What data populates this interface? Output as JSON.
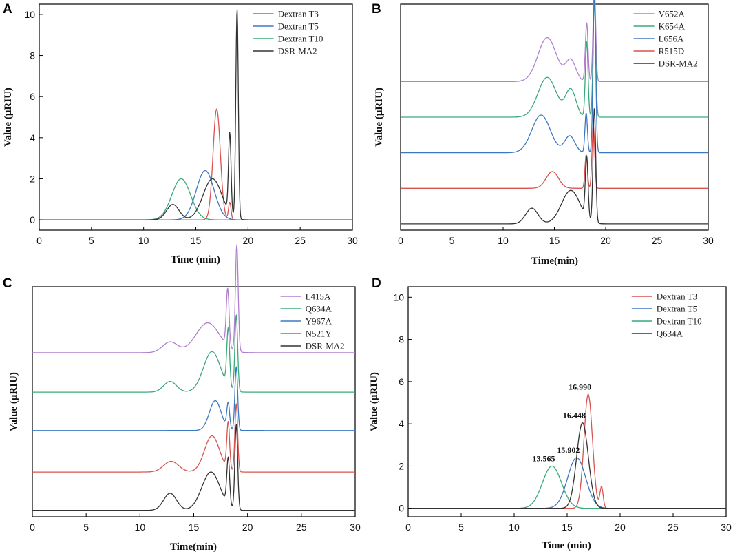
{
  "chart_data": [
    {
      "panel": "A",
      "type": "line",
      "xlabel": "Time (min)",
      "ylabel": "Value (μRIU)",
      "xlim": [
        0,
        30
      ],
      "ylim": [
        -0.5,
        10.5
      ],
      "xticks": [
        "0",
        "5",
        "10",
        "15",
        "20",
        "25",
        "30"
      ],
      "yticks": [
        "0",
        "2",
        "4",
        "6",
        "8",
        "10"
      ],
      "legend_position": "top-right",
      "series": [
        {
          "name": "Dextran  T3",
          "color": "#d9534f",
          "baseline": 0,
          "peaks": [
            {
              "t": 17.0,
              "h": 5.4,
              "w": 0.35
            },
            {
              "t": 18.25,
              "h": 0.85,
              "w": 0.12
            }
          ]
        },
        {
          "name": "Dextran  T5",
          "color": "#3b78c2",
          "baseline": 0,
          "peaks": [
            {
              "t": 15.9,
              "h": 2.4,
              "w": 0.85
            }
          ]
        },
        {
          "name": "Dextran  T10",
          "color": "#3aaa7a",
          "baseline": 0,
          "peaks": [
            {
              "t": 13.6,
              "h": 2.0,
              "w": 0.9
            }
          ]
        },
        {
          "name": "DSR-MA2",
          "color": "#333333",
          "baseline": 0,
          "peaks": [
            {
              "t": 12.8,
              "h": 0.75,
              "w": 0.6
            },
            {
              "t": 16.6,
              "h": 2.0,
              "w": 0.9
            },
            {
              "t": 18.25,
              "h": 3.9,
              "w": 0.12
            },
            {
              "t": 18.95,
              "h": 10.2,
              "w": 0.12
            }
          ]
        }
      ]
    },
    {
      "panel": "B",
      "type": "line",
      "xlabel": "Time(min)",
      "ylabel": "Value (μRIU)",
      "xlim": [
        0,
        30
      ],
      "ylim": [
        -0.3,
        10.5
      ],
      "xticks": [
        "0",
        "5",
        "10",
        "15",
        "20",
        "25",
        "30"
      ],
      "yticks": [],
      "legend_position": "top-right",
      "series": [
        {
          "name": "V652A",
          "color": "#b07fcf",
          "baseline": 6.8,
          "peaks": [
            {
              "t": 14.3,
              "h": 2.1,
              "w": 0.9
            },
            {
              "t": 16.6,
              "h": 1.0,
              "w": 0.5
            },
            {
              "t": 18.15,
              "h": 2.8,
              "w": 0.13
            },
            {
              "t": 18.9,
              "h": 4.5,
              "w": 0.13
            }
          ]
        },
        {
          "name": "K654A",
          "color": "#3aaa7a",
          "baseline": 5.1,
          "peaks": [
            {
              "t": 14.3,
              "h": 1.9,
              "w": 0.9
            },
            {
              "t": 16.6,
              "h": 1.3,
              "w": 0.5
            },
            {
              "t": 18.15,
              "h": 3.6,
              "w": 0.13
            },
            {
              "t": 18.9,
              "h": 5.5,
              "w": 0.13
            }
          ]
        },
        {
          "name": "L656A",
          "color": "#3b78c2",
          "baseline": 3.4,
          "peaks": [
            {
              "t": 13.7,
              "h": 1.8,
              "w": 0.9
            },
            {
              "t": 16.5,
              "h": 0.8,
              "w": 0.5
            },
            {
              "t": 18.1,
              "h": 1.9,
              "w": 0.12
            },
            {
              "t": 18.9,
              "h": 7.5,
              "w": 0.13
            }
          ]
        },
        {
          "name": "R515D",
          "color": "#d9534f",
          "baseline": 1.7,
          "peaks": [
            {
              "t": 14.8,
              "h": 0.8,
              "w": 0.6
            },
            {
              "t": 18.1,
              "h": 1.6,
              "w": 0.12
            },
            {
              "t": 18.8,
              "h": 3.0,
              "w": 0.13
            }
          ]
        },
        {
          "name": "DSR-MA2",
          "color": "#333333",
          "baseline": 0,
          "peaks": [
            {
              "t": 12.8,
              "h": 0.75,
              "w": 0.6
            },
            {
              "t": 16.6,
              "h": 1.6,
              "w": 0.9
            },
            {
              "t": 18.15,
              "h": 2.9,
              "w": 0.13
            },
            {
              "t": 18.9,
              "h": 5.5,
              "w": 0.13
            }
          ]
        }
      ]
    },
    {
      "panel": "C",
      "type": "line",
      "xlabel": "Time(min)",
      "ylabel": "Value (μRIU)",
      "xlim": [
        0,
        30
      ],
      "ylim": [
        -0.3,
        10.5
      ],
      "xticks": [
        "0",
        "5",
        "10",
        "15",
        "20",
        "25",
        "30"
      ],
      "yticks": [],
      "legend_position": "top-right",
      "series": [
        {
          "name": "L415A",
          "color": "#b07fcf",
          "baseline": 7.4,
          "peaks": [
            {
              "t": 12.8,
              "h": 0.5,
              "w": 0.7
            },
            {
              "t": 16.3,
              "h": 1.4,
              "w": 1.1
            },
            {
              "t": 18.15,
              "h": 2.7,
              "w": 0.13
            },
            {
              "t": 19.0,
              "h": 5.0,
              "w": 0.13
            }
          ]
        },
        {
          "name": "Q634A",
          "color": "#3aaa7a",
          "baseline": 5.55,
          "peaks": [
            {
              "t": 12.8,
              "h": 0.5,
              "w": 0.6
            },
            {
              "t": 16.7,
              "h": 1.9,
              "w": 0.8
            },
            {
              "t": 18.2,
              "h": 2.7,
              "w": 0.13
            },
            {
              "t": 18.95,
              "h": 3.6,
              "w": 0.13
            }
          ]
        },
        {
          "name": "Y967A",
          "color": "#3b78c2",
          "baseline": 3.75,
          "peaks": [
            {
              "t": 17.0,
              "h": 1.4,
              "w": 0.55
            },
            {
              "t": 18.2,
              "h": 1.2,
              "w": 0.13
            },
            {
              "t": 18.95,
              "h": 3.0,
              "w": 0.13
            }
          ]
        },
        {
          "name": "N521Y",
          "color": "#d9534f",
          "baseline": 1.8,
          "peaks": [
            {
              "t": 12.9,
              "h": 0.5,
              "w": 0.7
            },
            {
              "t": 16.7,
              "h": 1.7,
              "w": 0.7
            },
            {
              "t": 18.2,
              "h": 2.2,
              "w": 0.13
            },
            {
              "t": 18.95,
              "h": 3.2,
              "w": 0.13
            }
          ]
        },
        {
          "name": "DSR-MA2",
          "color": "#333333",
          "baseline": 0,
          "peaks": [
            {
              "t": 12.8,
              "h": 0.8,
              "w": 0.6
            },
            {
              "t": 16.6,
              "h": 1.8,
              "w": 0.85
            },
            {
              "t": 18.2,
              "h": 2.2,
              "w": 0.13
            },
            {
              "t": 18.95,
              "h": 4.0,
              "w": 0.13
            }
          ]
        }
      ]
    },
    {
      "panel": "D",
      "type": "line",
      "xlabel": "Time (min)",
      "ylabel": "Value (μRIU)",
      "xlim": [
        0,
        30
      ],
      "ylim": [
        -0.4,
        10.5
      ],
      "xticks": [
        "0",
        "5",
        "10",
        "15",
        "20",
        "25",
        "30"
      ],
      "yticks": [
        "0",
        "2",
        "4",
        "6",
        "8",
        "10"
      ],
      "legend_position": "top-right",
      "series": [
        {
          "name": "Dextran T3",
          "color": "#d9534f",
          "baseline": 0,
          "peaks": [
            {
              "t": 16.99,
              "h": 5.4,
              "w": 0.4
            },
            {
              "t": 18.25,
              "h": 1.0,
              "w": 0.15
            }
          ]
        },
        {
          "name": "Dextran T5",
          "color": "#3b78c2",
          "baseline": 0,
          "peaks": [
            {
              "t": 15.9,
              "h": 2.4,
              "w": 0.85
            }
          ]
        },
        {
          "name": "Dextran T10",
          "color": "#3aaa7a",
          "baseline": 0,
          "peaks": [
            {
              "t": 13.57,
              "h": 2.0,
              "w": 0.9
            }
          ]
        },
        {
          "name": "Q634A",
          "color": "#333333",
          "baseline": 0,
          "peaks": [
            {
              "t": 16.45,
              "h": 4.05,
              "w": 0.55
            }
          ]
        }
      ],
      "annotations": [
        {
          "text": "16.990",
          "x": 16.99,
          "y": 5.4
        },
        {
          "text": "16.448",
          "x": 16.45,
          "y": 4.05
        },
        {
          "text": "15.902",
          "x": 15.9,
          "y": 2.4
        },
        {
          "text": "13.565",
          "x": 13.57,
          "y": 2.0
        }
      ]
    }
  ]
}
